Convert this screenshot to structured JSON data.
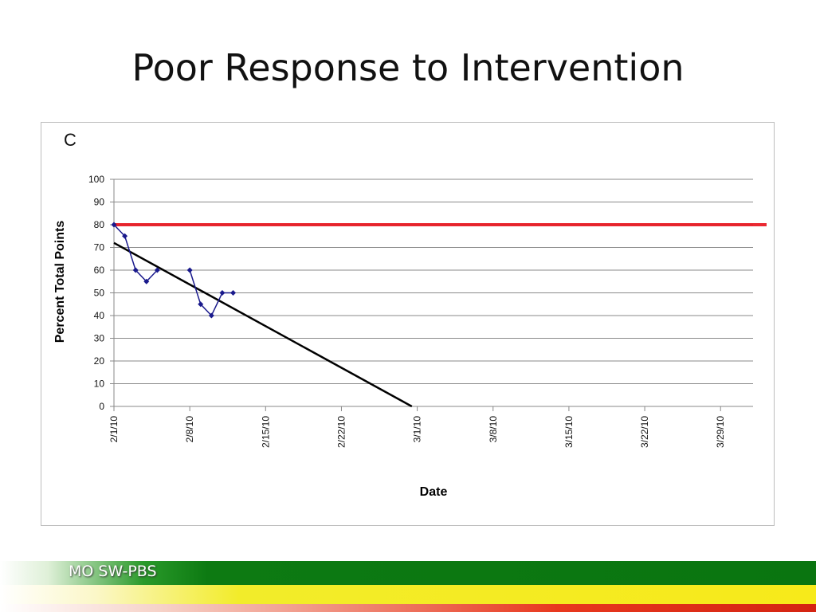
{
  "slide": {
    "title": "Poor Response to Intervention",
    "footer_brand": "MO SW-PBS"
  },
  "chart_data": {
    "type": "line",
    "panel_label": "C",
    "ylabel": "Percent Total Points",
    "xlabel": "Date",
    "ylim": [
      0,
      100
    ],
    "y_ticks": [
      0,
      10,
      20,
      30,
      40,
      50,
      60,
      70,
      80,
      90,
      100
    ],
    "x_ticks": [
      "2/1/10",
      "2/8/10",
      "2/15/10",
      "2/22/10",
      "3/1/10",
      "3/8/10",
      "3/15/10",
      "3/22/10",
      "3/29/10"
    ],
    "x_tick_days": [
      0,
      7,
      14,
      21,
      28,
      35,
      42,
      49,
      56
    ],
    "x_range_days": [
      0,
      59
    ],
    "grid": "horizontal",
    "goal_line": {
      "y": 80,
      "color": "#e8121c"
    },
    "trend_line": {
      "x_days": [
        0,
        27.5
      ],
      "y": [
        72,
        0
      ],
      "color": "#000000"
    },
    "series": [
      {
        "color": "#1a1a8c",
        "segments": [
          {
            "x_days": [
              0,
              1,
              2,
              3,
              4
            ],
            "y": [
              80,
              75,
              60,
              55,
              60
            ]
          },
          {
            "x_days": [
              7,
              8,
              9,
              10,
              11
            ],
            "y": [
              60,
              45,
              40,
              50,
              50
            ]
          }
        ]
      }
    ]
  }
}
